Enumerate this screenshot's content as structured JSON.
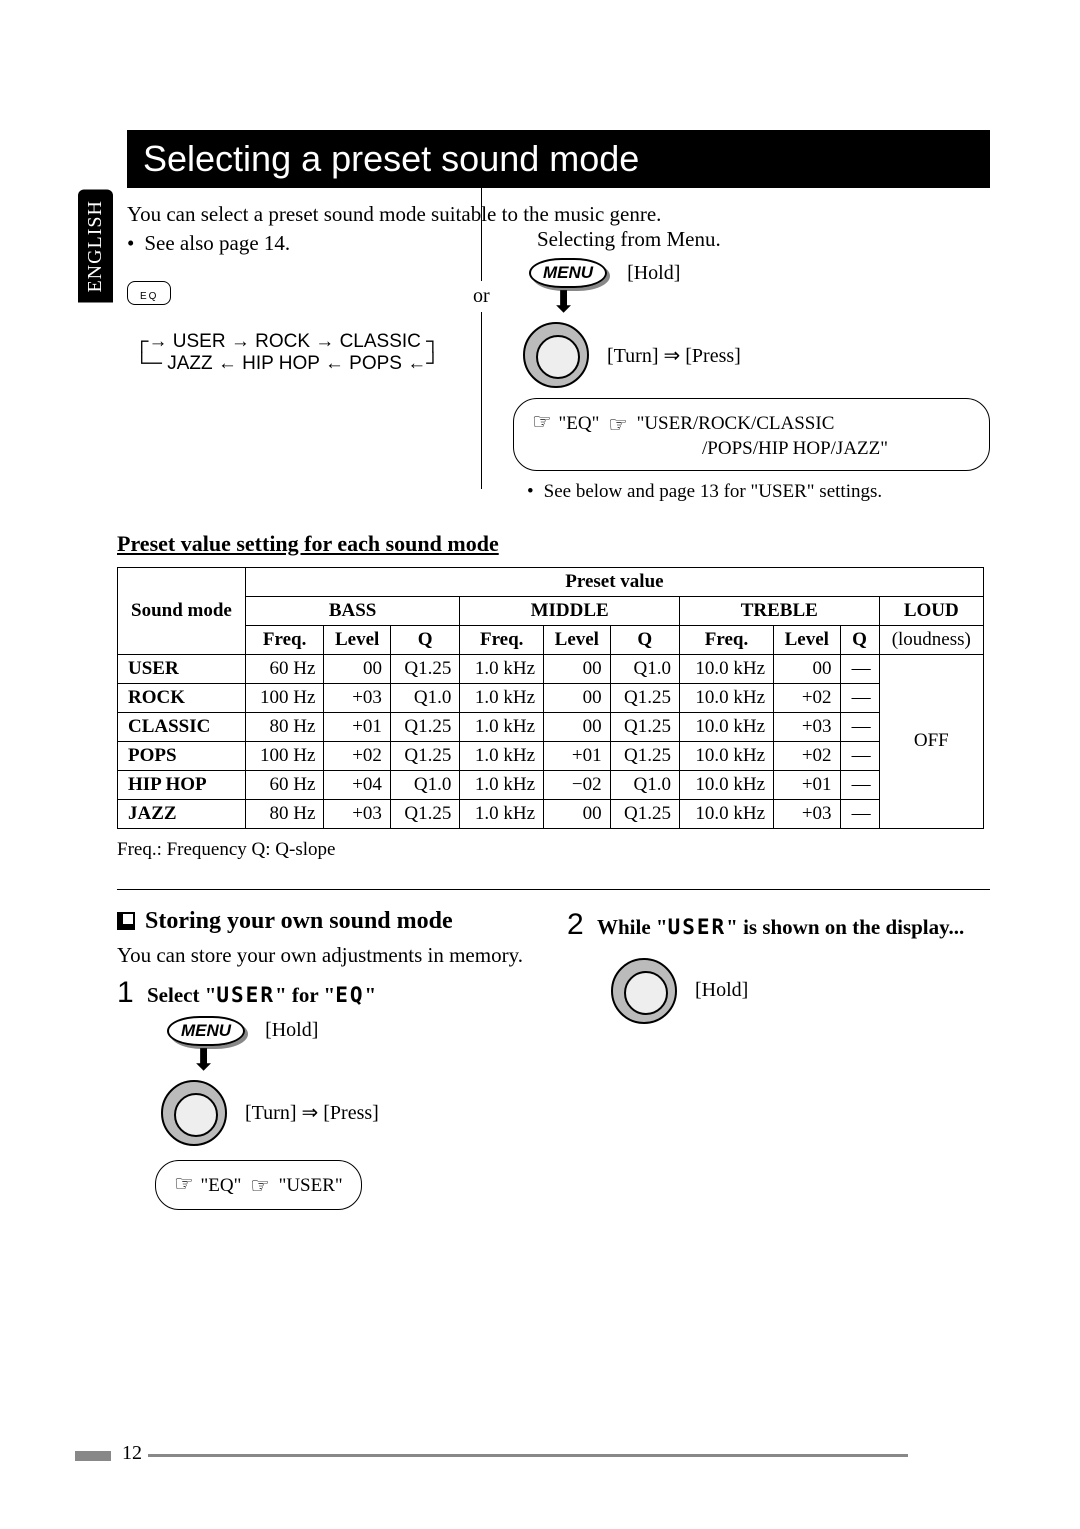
{
  "language_tab": "ENGLISH",
  "title": "Selecting a preset sound mode",
  "intro": "You can select a preset sound mode suitable to the music genre.",
  "see_also": "See also page 14.",
  "cycle_top": [
    "USER",
    "ROCK",
    "CLASSIC"
  ],
  "cycle_bottom": [
    "JAZZ",
    "HIP HOP",
    "POPS"
  ],
  "eq_btn_label": "EQ",
  "or_label": "or",
  "selecting_menu": "Selecting from Menu.",
  "menu_btn": "MENU",
  "hold": "[Hold]",
  "turn_press": "[Turn] ⇒ [Press]",
  "eq_quoted": "\"EQ\"",
  "modes_quoted_line1": "\"USER/ROCK/CLASSIC",
  "modes_quoted_line2": "/POPS/HIP HOP/JAZZ\"",
  "see_below": "See below and page 13 for \"USER\" settings.",
  "preset_heading": "Preset value setting for each sound mode",
  "table": {
    "h_sound_mode": "Sound mode",
    "h_preset_value": "Preset value",
    "h_bass": "BASS",
    "h_middle": "MIDDLE",
    "h_treble": "TREBLE",
    "h_loud": "LOUD",
    "h_freq": "Freq.",
    "h_level": "Level",
    "h_q": "Q",
    "h_loudness": "(loudness)",
    "loud_value": "OFF",
    "rows": [
      {
        "mode": "USER",
        "bf": "60 Hz",
        "bl": "00",
        "bq": "Q1.25",
        "mf": "1.0 kHz",
        "ml": "00",
        "mq": "Q1.0",
        "tf": "10.0 kHz",
        "tl": "00",
        "tq": "—"
      },
      {
        "mode": "ROCK",
        "bf": "100 Hz",
        "bl": "+03",
        "bq": "Q1.0",
        "mf": "1.0 kHz",
        "ml": "00",
        "mq": "Q1.25",
        "tf": "10.0 kHz",
        "tl": "+02",
        "tq": "—"
      },
      {
        "mode": "CLASSIC",
        "bf": "80 Hz",
        "bl": "+01",
        "bq": "Q1.25",
        "mf": "1.0 kHz",
        "ml": "00",
        "mq": "Q1.25",
        "tf": "10.0 kHz",
        "tl": "+03",
        "tq": "—"
      },
      {
        "mode": "POPS",
        "bf": "100 Hz",
        "bl": "+02",
        "bq": "Q1.25",
        "mf": "1.0 kHz",
        "ml": "+01",
        "mq": "Q1.25",
        "tf": "10.0 kHz",
        "tl": "+02",
        "tq": "—"
      },
      {
        "mode": "HIP HOP",
        "bf": "60 Hz",
        "bl": "+04",
        "bq": "Q1.0",
        "mf": "1.0 kHz",
        "ml": "−02",
        "mq": "Q1.0",
        "tf": "10.0 kHz",
        "tl": "+01",
        "tq": "—"
      },
      {
        "mode": "JAZZ",
        "bf": "80 Hz",
        "bl": "+03",
        "bq": "Q1.25",
        "mf": "1.0 kHz",
        "ml": "00",
        "mq": "Q1.25",
        "tf": "10.0 kHz",
        "tl": "+03",
        "tq": "—"
      }
    ]
  },
  "table_note": "Freq.: Frequency   Q: Q-slope",
  "storing_heading": "Storing your own sound mode",
  "storing_intro": "You can store your own adjustments in memory.",
  "step1_num": "1",
  "step1_text_a": "Select \"",
  "step1_lcd1": "USER",
  "step1_text_b": "\" for \"",
  "step1_lcd2": "EQ",
  "step1_text_c": "\"",
  "bc_user": "\"USER\"",
  "step2_num": "2",
  "step2_text_a": "While \"",
  "step2_lcd": "USER",
  "step2_text_b": "\" is shown on the display...",
  "page_number": "12"
}
